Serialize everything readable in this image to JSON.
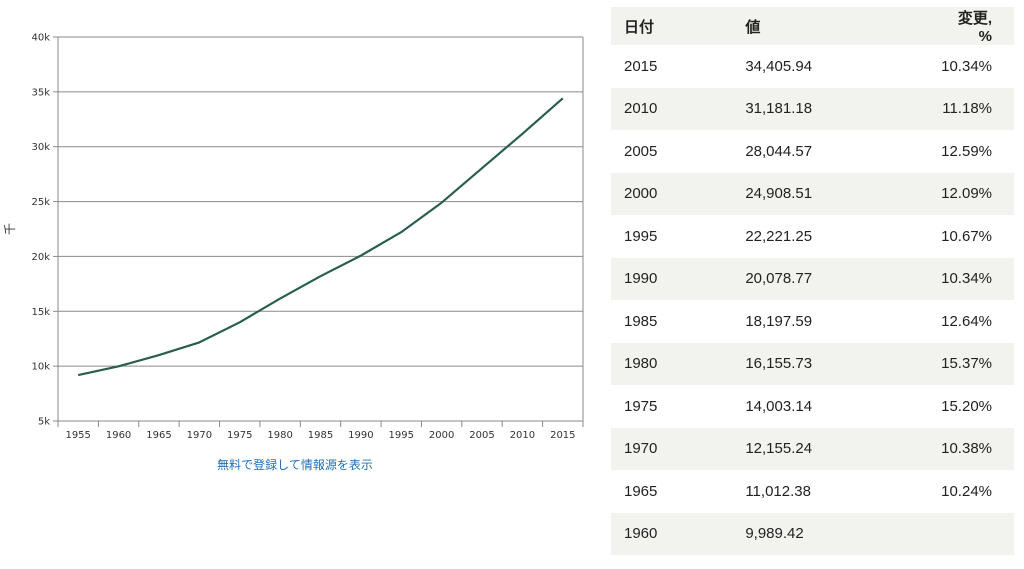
{
  "chart_data": {
    "type": "line",
    "title": "",
    "xlabel": "",
    "ylabel": "千",
    "x": [
      1955,
      1960,
      1965,
      1970,
      1975,
      1980,
      1985,
      1990,
      1995,
      2000,
      2005,
      2010,
      2015
    ],
    "y_thousands": [
      9.18,
      9.99,
      11.01,
      12.16,
      14.0,
      16.16,
      18.2,
      20.08,
      22.22,
      24.91,
      28.04,
      31.18,
      34.41
    ],
    "xticks": [
      "1955",
      "1960",
      "1965",
      "1970",
      "1975",
      "1980",
      "1985",
      "1990",
      "1995",
      "2000",
      "2005",
      "2010",
      "2015"
    ],
    "yticks": [
      "5k",
      "10k",
      "15k",
      "20k",
      "25k",
      "30k",
      "35k",
      "40k"
    ],
    "ylim": [
      5,
      40
    ],
    "grid": true,
    "line_color": "#2a5f4a"
  },
  "source_link": "無料で登録して情報源を表示",
  "table": {
    "headers": {
      "date": "日付",
      "value": "値",
      "change": "変更, %"
    },
    "rows": [
      {
        "date": "2015",
        "value": "34,405.94",
        "change": "10.34%"
      },
      {
        "date": "2010",
        "value": "31,181.18",
        "change": "11.18%"
      },
      {
        "date": "2005",
        "value": "28,044.57",
        "change": "12.59%"
      },
      {
        "date": "2000",
        "value": "24,908.51",
        "change": "12.09%"
      },
      {
        "date": "1995",
        "value": "22,221.25",
        "change": "10.67%"
      },
      {
        "date": "1990",
        "value": "20,078.77",
        "change": "10.34%"
      },
      {
        "date": "1985",
        "value": "18,197.59",
        "change": "12.64%"
      },
      {
        "date": "1980",
        "value": "16,155.73",
        "change": "15.37%"
      },
      {
        "date": "1975",
        "value": "14,003.14",
        "change": "15.20%"
      },
      {
        "date": "1970",
        "value": "12,155.24",
        "change": "10.38%"
      },
      {
        "date": "1965",
        "value": "11,012.38",
        "change": "10.24%"
      },
      {
        "date": "1960",
        "value": "9,989.42",
        "change": ""
      }
    ]
  }
}
